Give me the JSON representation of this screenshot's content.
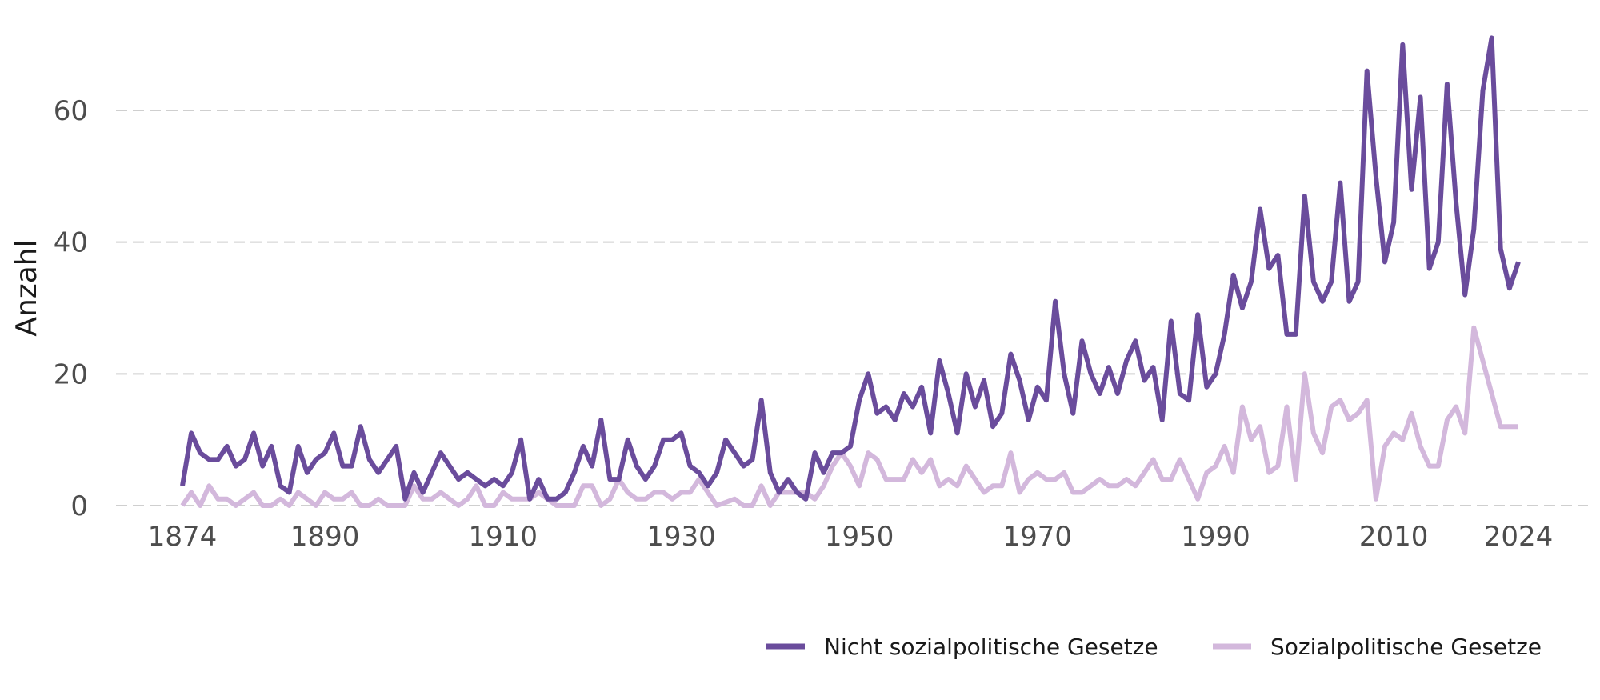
{
  "chart_data": {
    "type": "line",
    "title": "",
    "xlabel": "",
    "ylabel": "Anzahl",
    "xlim": [
      1874,
      2024
    ],
    "ylim": [
      0,
      72
    ],
    "grid": true,
    "legend_position": "bottom-right",
    "x_ticks": [
      1874,
      1890,
      1910,
      1930,
      1950,
      1970,
      1990,
      2010,
      2024
    ],
    "y_ticks": [
      0,
      20,
      40,
      60
    ],
    "x": [
      1874,
      1875,
      1876,
      1877,
      1878,
      1879,
      1880,
      1881,
      1882,
      1883,
      1884,
      1885,
      1886,
      1887,
      1888,
      1889,
      1890,
      1891,
      1892,
      1893,
      1894,
      1895,
      1896,
      1897,
      1898,
      1899,
      1900,
      1901,
      1902,
      1903,
      1904,
      1905,
      1906,
      1907,
      1908,
      1909,
      1910,
      1911,
      1912,
      1913,
      1914,
      1915,
      1916,
      1917,
      1918,
      1919,
      1920,
      1921,
      1922,
      1923,
      1924,
      1925,
      1926,
      1927,
      1928,
      1929,
      1930,
      1931,
      1932,
      1933,
      1934,
      1935,
      1936,
      1937,
      1938,
      1939,
      1940,
      1941,
      1942,
      1943,
      1944,
      1945,
      1946,
      1947,
      1948,
      1949,
      1950,
      1951,
      1952,
      1953,
      1954,
      1955,
      1956,
      1957,
      1958,
      1959,
      1960,
      1961,
      1962,
      1963,
      1964,
      1965,
      1966,
      1967,
      1968,
      1969,
      1970,
      1971,
      1972,
      1973,
      1974,
      1975,
      1976,
      1977,
      1978,
      1979,
      1980,
      1981,
      1982,
      1983,
      1984,
      1985,
      1986,
      1987,
      1988,
      1989,
      1990,
      1991,
      1992,
      1993,
      1994,
      1995,
      1996,
      1997,
      1998,
      1999,
      2000,
      2001,
      2002,
      2003,
      2004,
      2005,
      2006,
      2007,
      2008,
      2009,
      2010,
      2011,
      2012,
      2013,
      2014,
      2015,
      2016,
      2017,
      2018,
      2019,
      2020,
      2021,
      2022,
      2023,
      2024
    ],
    "series": [
      {
        "name": "Nicht sozialpolitische Gesetze",
        "color": "#6a4c9c",
        "values": [
          3,
          11,
          8,
          7,
          7,
          9,
          6,
          7,
          11,
          6,
          9,
          3,
          2,
          9,
          5,
          7,
          8,
          11,
          6,
          6,
          12,
          7,
          5,
          7,
          9,
          1,
          5,
          2,
          5,
          8,
          6,
          4,
          5,
          4,
          3,
          4,
          3,
          5,
          10,
          1,
          4,
          1,
          1,
          2,
          5,
          9,
          6,
          13,
          4,
          4,
          10,
          6,
          4,
          6,
          10,
          10,
          11,
          6,
          5,
          3,
          5,
          10,
          8,
          6,
          7,
          16,
          5,
          2,
          4,
          2,
          1,
          8,
          5,
          8,
          8,
          9,
          16,
          20,
          14,
          15,
          13,
          17,
          15,
          18,
          11,
          22,
          17,
          11,
          20,
          15,
          19,
          12,
          14,
          23,
          19,
          13,
          18,
          16,
          31,
          20,
          14,
          25,
          20,
          17,
          21,
          17,
          22,
          25,
          19,
          21,
          13,
          28,
          17,
          16,
          29,
          18,
          20,
          26,
          35,
          30,
          34,
          45,
          36,
          38,
          26,
          26,
          47,
          34,
          31,
          34,
          49,
          31,
          34,
          66,
          50,
          37,
          43,
          70,
          48,
          62,
          36,
          40,
          64,
          46,
          32,
          42,
          63,
          71,
          39,
          33,
          37
        ]
      },
      {
        "name": "Sozialpolitische Gesetze",
        "color": "#d3b8dc",
        "values": [
          0,
          2,
          0,
          3,
          1,
          1,
          0,
          1,
          2,
          0,
          0,
          1,
          0,
          2,
          1,
          0,
          2,
          1,
          1,
          2,
          0,
          0,
          1,
          0,
          0,
          0,
          3,
          1,
          1,
          2,
          1,
          0,
          1,
          3,
          0,
          0,
          2,
          1,
          1,
          1,
          2,
          1,
          0,
          0,
          0,
          3,
          3,
          0,
          1,
          4,
          2,
          1,
          1,
          2,
          2,
          1,
          2,
          2,
          4,
          2,
          0,
          0.5,
          1,
          0,
          0,
          3,
          0,
          2,
          2,
          2,
          2,
          1,
          3,
          6,
          8,
          6,
          3,
          8,
          7,
          4,
          4,
          4,
          7,
          5,
          7,
          3,
          4,
          3,
          6,
          4,
          2,
          3,
          3,
          8,
          2,
          4,
          5,
          4,
          4,
          5,
          2,
          2,
          3,
          4,
          3,
          3,
          4,
          3,
          5,
          7,
          4,
          4,
          7,
          4,
          1,
          5,
          6,
          9,
          5,
          15,
          10,
          12,
          5,
          6,
          15,
          4,
          20,
          11,
          8,
          15,
          16,
          13,
          14,
          16,
          1,
          9,
          11,
          10,
          14,
          9,
          6,
          6,
          13,
          15,
          11,
          27,
          22,
          17,
          12,
          12,
          12
        ]
      }
    ]
  }
}
